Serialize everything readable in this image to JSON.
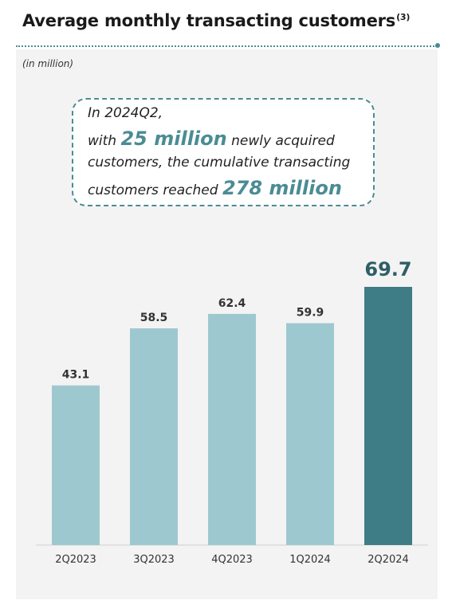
{
  "header": {
    "title": "Average monthly transacting customers",
    "footnote": "(3)"
  },
  "unit_label": "(in million)",
  "callout": {
    "line1": "In 2024Q2,",
    "line2_pre": "with ",
    "line2_highlight": "25 million",
    "line2_post": " newly acquired",
    "line3": "customers, the cumulative transacting",
    "line4_pre": "customers reached ",
    "line4_highlight": "278 million"
  },
  "colors": {
    "bar": "#9ec8cf",
    "bar_highlight": "#3e7c86",
    "accent": "#4b8c94",
    "label": "#333333"
  },
  "chart_data": {
    "type": "bar",
    "categories": [
      "2Q2023",
      "3Q2023",
      "4Q2023",
      "1Q2024",
      "2Q2024"
    ],
    "values": [
      43.1,
      58.5,
      62.4,
      59.9,
      69.7
    ],
    "value_labels": [
      "43.1",
      "58.5",
      "62.4",
      "59.9",
      "69.7"
    ],
    "highlight_index": 4,
    "ylim": [
      0,
      69.7
    ],
    "grid": false,
    "legend": "none"
  }
}
